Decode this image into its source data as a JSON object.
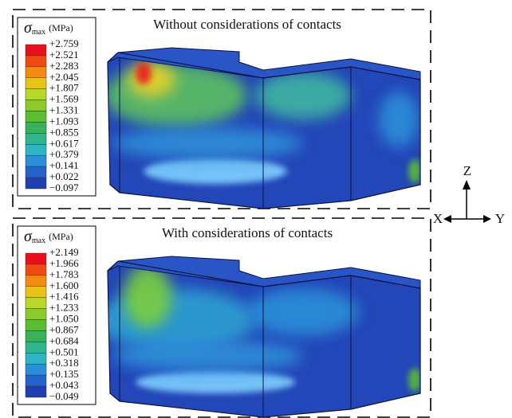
{
  "panels": [
    {
      "title": "Without considerations of contacts",
      "legend": {
        "symbol": "σ",
        "subscript": "max",
        "unit": "(MPa)",
        "labels": [
          "+2.759",
          "+2.521",
          "+2.283",
          "+2.045",
          "+1.807",
          "+1.569",
          "+1.331",
          "+1.093",
          "+0.855",
          "+0.617",
          "+0.379",
          "+0.141",
          "+0.022",
          "−0.097"
        ]
      }
    },
    {
      "title": "With considerations of contacts",
      "legend": {
        "symbol": "σ",
        "subscript": "max",
        "unit": "(MPa)",
        "labels": [
          "+2.149",
          "+1.966",
          "+1.783",
          "+1.600",
          "+1.416",
          "+1.233",
          "+1.050",
          "+0.867",
          "+0.684",
          "+0.501",
          "+0.318",
          "+0.135",
          "+0.043",
          "−0.049"
        ]
      }
    }
  ],
  "triad": {
    "z": "Z",
    "x": "X",
    "y": "Y"
  }
}
